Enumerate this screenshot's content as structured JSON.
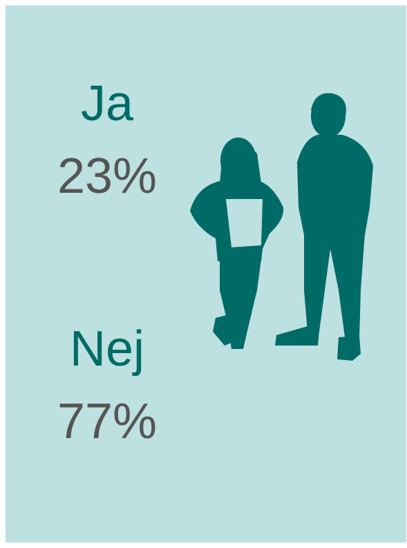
{
  "items": [
    {
      "label": "Ja",
      "value": "23%"
    },
    {
      "label": "Nej",
      "value": "77%"
    }
  ]
}
